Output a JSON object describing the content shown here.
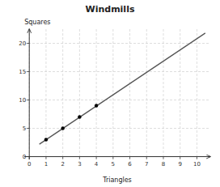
{
  "chart_data": {
    "type": "line",
    "title": "Windmills",
    "x_label": "Triangles",
    "y_label": "Squares",
    "series": [
      {
        "type": "line",
        "color": "#555555",
        "line_style": "solid",
        "x": [
          0.6,
          10.5
        ],
        "values": [
          2.2,
          21.8
        ]
      },
      {
        "type": "scatter",
        "color": "black",
        "marker": "circle",
        "x": [
          1,
          2,
          3,
          4
        ],
        "values": [
          3,
          5,
          7,
          9
        ]
      }
    ],
    "xlim": [
      -0.3,
      10.8
    ],
    "ylim": [
      -0.5,
      22.5
    ],
    "xticks": [
      0,
      1,
      2,
      3,
      4,
      5,
      6,
      7,
      8,
      9,
      10
    ],
    "yticks": [
      0,
      5,
      10,
      15,
      20
    ],
    "grid": true
  }
}
